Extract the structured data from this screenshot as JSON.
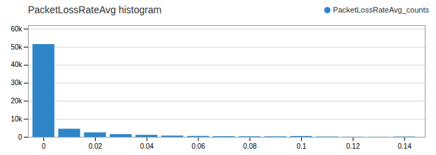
{
  "chart_data": {
    "type": "bar",
    "title": "PacketLossRateAvg histogram",
    "x": [
      0.0,
      0.01,
      0.02,
      0.03,
      0.04,
      0.05,
      0.06,
      0.07,
      0.08,
      0.09,
      0.1,
      0.11,
      0.12,
      0.13,
      0.14
    ],
    "series": [
      {
        "name": "PacketLossRateAvg_counts",
        "color": "#2E86C8",
        "values": [
          51500,
          4500,
          2500,
          1500,
          1100,
          700,
          500,
          350,
          300,
          280,
          450,
          180,
          80,
          50,
          180
        ]
      }
    ],
    "xlim": [
      -0.006,
      0.148
    ],
    "xticks": [
      0,
      0.02,
      0.04,
      0.06,
      0.08,
      0.1,
      0.12,
      0.14
    ],
    "ylim": [
      0,
      62000
    ],
    "yticks": [
      0,
      {
        "value": 10000,
        "label": "10k"
      },
      {
        "value": 20000,
        "label": "20k"
      },
      {
        "value": 30000,
        "label": "30k"
      },
      {
        "value": 40000,
        "label": "40k"
      },
      {
        "value": 50000,
        "label": "50k"
      },
      {
        "value": 60000,
        "label": "60k"
      }
    ],
    "grid": true,
    "legend": "upper right"
  }
}
